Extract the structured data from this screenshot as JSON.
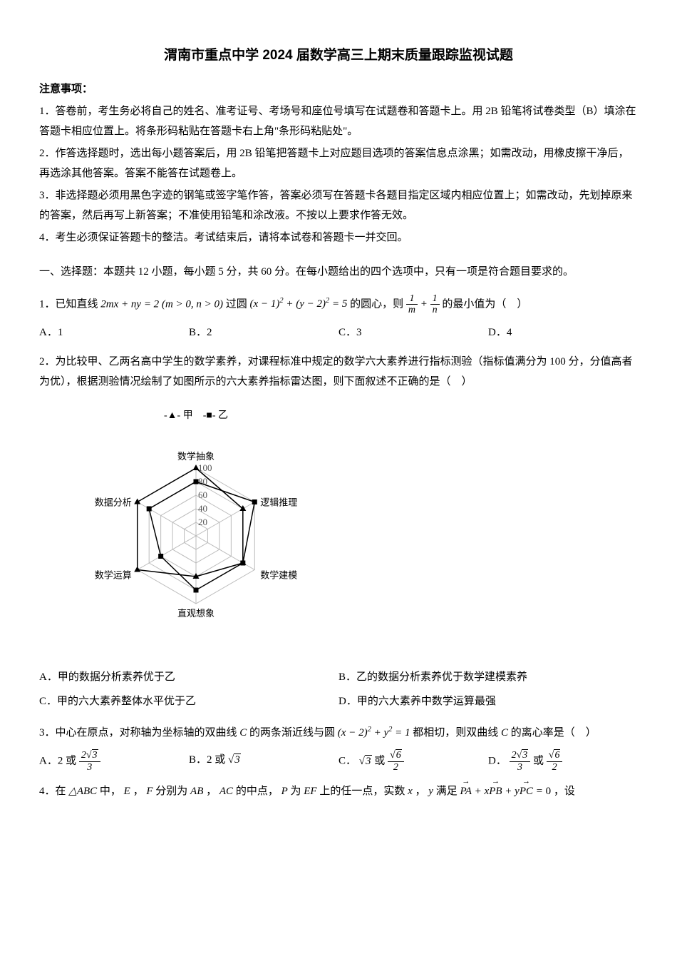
{
  "title": "渭南市重点中学 2024 届数学高三上期末质量跟踪监视试题",
  "notice_header": "注意事项：",
  "instructions": [
    "1．答卷前，考生务必将自己的姓名、准考证号、考场号和座位号填写在试题卷和答题卡上。用 2B 铅笔将试卷类型（B）填涂在答题卡相应位置上。将条形码粘贴在答题卡右上角\"条形码粘贴处\"。",
    "2．作答选择题时，选出每小题答案后，用 2B 铅笔把答题卡上对应题目选项的答案信息点涂黑；如需改动，用橡皮擦干净后，再选涂其他答案。答案不能答在试题卷上。",
    "3．非选择题必须用黑色字迹的钢笔或签字笔作答，答案必须写在答题卡各题目指定区域内相应位置上；如需改动，先划掉原来的答案，然后再写上新答案；不准使用铅笔和涂改液。不按以上要求作答无效。",
    "4．考生必须保证答题卡的整洁。考试结束后，请将本试卷和答题卡一并交回。"
  ],
  "section1_intro": "一、选择题：本题共 12 小题，每小题 5 分，共 60 分。在每小题给出的四个选项中，只有一项是符合题目要求的。",
  "q1": {
    "prefix": "1．已知直线",
    "mid1": "过圆",
    "mid2": "的圆心，则",
    "suffix": "的最小值为（　）",
    "opts": {
      "A": "A．1",
      "B": "B．2",
      "C": "C．3",
      "D": "D．4"
    }
  },
  "q2": {
    "text": "2．为比较甲、乙两名高中学生的数学素养，对课程标准中规定的数学六大素养进行指标测验（指标值满分为 100 分，分值高者为优），根据测验情况绘制了如图所示的六大素养指标雷达图，则下面叙述不正确的是（　）",
    "legend_a": "甲",
    "legend_b": "乙",
    "radar": {
      "axes": [
        "数学抽象",
        "逻辑推理",
        "数学建模",
        "直观想象",
        "数学运算",
        "数据分析"
      ],
      "ticks": [
        "20",
        "40",
        "60",
        "80",
        "100"
      ],
      "series_a": {
        "name": "甲",
        "values": [
          100,
          80,
          80,
          60,
          100,
          100
        ],
        "color": "#000000",
        "marker": "triangle"
      },
      "series_b": {
        "name": "乙",
        "values": [
          80,
          100,
          80,
          80,
          60,
          80
        ],
        "color": "#000000",
        "marker": "square"
      },
      "grid_color": "#bbbbbb",
      "background": "#ffffff",
      "max": 100
    },
    "opts": {
      "A": "A．甲的数据分析素养优于乙",
      "B": "B．乙的数据分析素养优于数学建模素养",
      "C": "C．甲的六大素养整体水平优于乙",
      "D": "D．甲的六大素养中数学运算最强"
    }
  },
  "q3": {
    "prefix": "3．中心在原点，对称轴为坐标轴的双曲线",
    "mid1": "的两条渐近线与圆",
    "mid2": "都相切，则双曲线",
    "suffix": "的离心率是（　）",
    "opts": {
      "A_pre": "A．2 或",
      "B_pre": "B．2 或",
      "C_pre": "C．",
      "C_mid": "或",
      "D_mid": "或"
    }
  },
  "q4": {
    "prefix": "4．在",
    "t1": "中，",
    "t2": "，",
    "t3": "分别为",
    "t4": "，",
    "t5": "的中点，",
    "t6": "为",
    "t7": "上的任一点，实数",
    "t8": "，",
    "t9": "满足",
    "t10": "，设"
  }
}
